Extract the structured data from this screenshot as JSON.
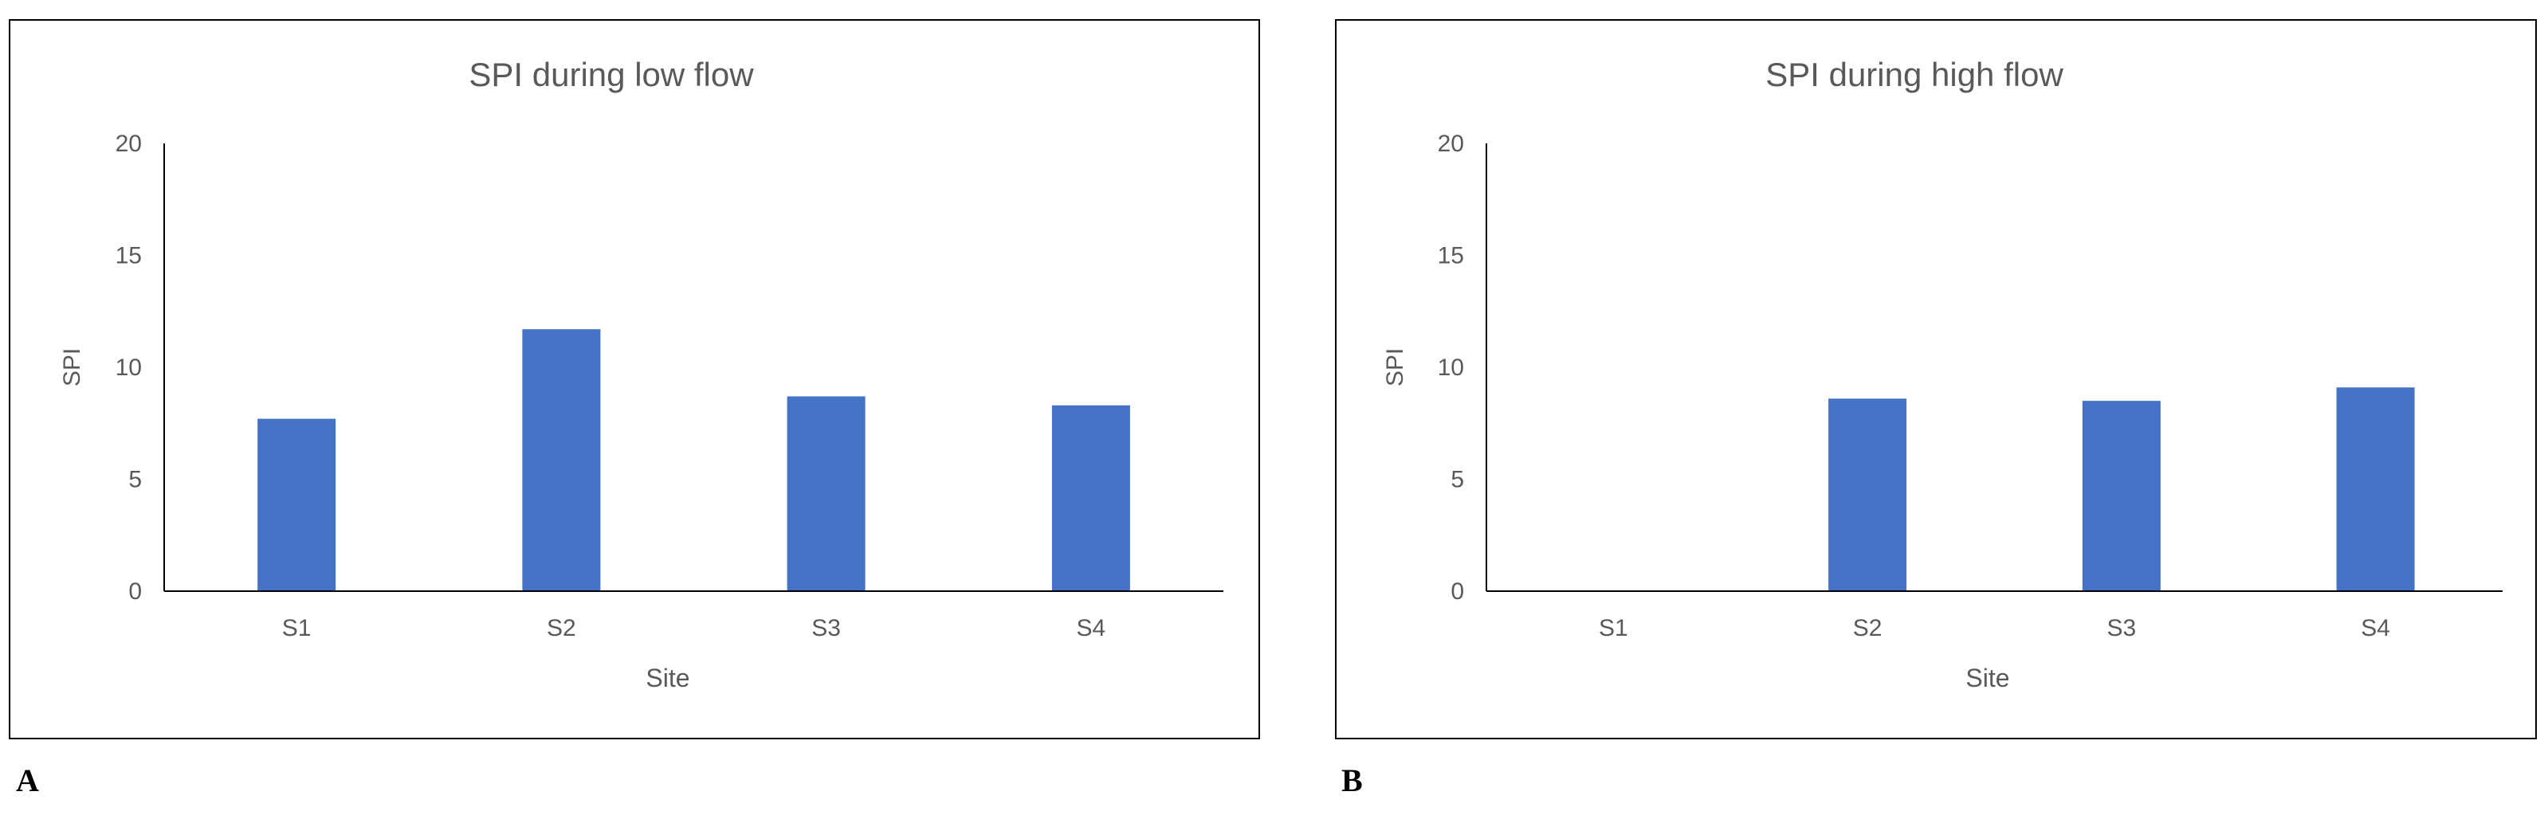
{
  "chart_data": [
    {
      "type": "bar",
      "panel_label": "A",
      "title": "SPI during low flow",
      "xlabel": "Site",
      "ylabel": "SPI",
      "categories": [
        "S1",
        "S2",
        "S3",
        "S4"
      ],
      "values": [
        7.7,
        11.7,
        8.7,
        8.3
      ],
      "ylim": [
        0,
        20
      ],
      "yticks": [
        0,
        5,
        10,
        15,
        20
      ],
      "grid": false,
      "legend": "none"
    },
    {
      "type": "bar",
      "panel_label": "B",
      "title": "SPI during high flow",
      "xlabel": "Site",
      "ylabel": "SPI",
      "categories": [
        "S1",
        "S2",
        "S3",
        "S4"
      ],
      "values": [
        0,
        8.6,
        8.5,
        9.1
      ],
      "ylim": [
        0,
        20
      ],
      "yticks": [
        0,
        5,
        10,
        15,
        20
      ],
      "grid": false,
      "legend": "none"
    }
  ],
  "colors": {
    "bar": "#4472c4",
    "axis": "#000000",
    "text": "#595959",
    "frame": "#000000"
  }
}
